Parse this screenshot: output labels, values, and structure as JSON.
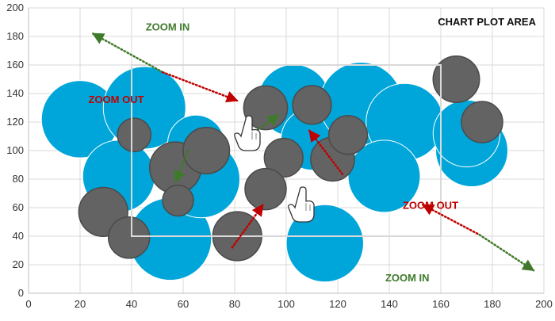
{
  "chart_data": {
    "type": "bubble",
    "title": "CHART PLOT AREA",
    "xlabel": "",
    "ylabel": "",
    "xlim": [
      0,
      200
    ],
    "ylim": [
      0,
      200
    ],
    "grid": true,
    "x_ticks": [
      0,
      20,
      40,
      60,
      80,
      100,
      120,
      140,
      160,
      180,
      200
    ],
    "y_ticks": [
      0,
      20,
      40,
      60,
      80,
      100,
      120,
      140,
      160,
      180,
      200
    ],
    "zoom_region": {
      "x": [
        40,
        160
      ],
      "y": [
        40,
        160
      ]
    },
    "series": [
      {
        "color": "#00a6d9",
        "points": [
          {
            "x": 20,
            "y": 122,
            "r": 15
          },
          {
            "x": 45,
            "y": 130,
            "r": 16
          },
          {
            "x": 35,
            "y": 82,
            "r": 14
          },
          {
            "x": 55,
            "y": 38,
            "r": 16
          },
          {
            "x": 67,
            "y": 80,
            "r": 15
          },
          {
            "x": 65,
            "y": 105,
            "r": 11
          },
          {
            "x": 103,
            "y": 135,
            "r": 14
          },
          {
            "x": 110,
            "y": 108,
            "r": 12
          },
          {
            "x": 129,
            "y": 133,
            "r": 16
          },
          {
            "x": 146,
            "y": 120,
            "r": 15
          },
          {
            "x": 138,
            "y": 82,
            "r": 14
          },
          {
            "x": 115,
            "y": 35,
            "r": 15
          },
          {
            "x": 172,
            "y": 100,
            "r": 14
          },
          {
            "x": 170,
            "y": 112,
            "r": 13
          }
        ]
      },
      {
        "color": "#636363",
        "points": [
          {
            "x": 41,
            "y": 111,
            "r": 6.5
          },
          {
            "x": 29,
            "y": 57,
            "r": 9.5
          },
          {
            "x": 39,
            "y": 39,
            "r": 8
          },
          {
            "x": 57,
            "y": 88,
            "r": 10
          },
          {
            "x": 69,
            "y": 100,
            "r": 9
          },
          {
            "x": 58,
            "y": 65,
            "r": 6
          },
          {
            "x": 81,
            "y": 40,
            "r": 9.5
          },
          {
            "x": 92,
            "y": 130,
            "r": 8.5
          },
          {
            "x": 99,
            "y": 95,
            "r": 7.5
          },
          {
            "x": 92,
            "y": 73,
            "r": 8
          },
          {
            "x": 110,
            "y": 132,
            "r": 7.5
          },
          {
            "x": 118,
            "y": 94,
            "r": 8.5
          },
          {
            "x": 124,
            "y": 111,
            "r": 7.5
          },
          {
            "x": 166,
            "y": 150,
            "r": 9
          },
          {
            "x": 176,
            "y": 120,
            "r": 8
          }
        ]
      }
    ],
    "annotations": [
      {
        "label": "ZOOM IN",
        "x": 54,
        "y": 187,
        "color": "#3f7a2a"
      },
      {
        "label": "ZOOM OUT",
        "x": 34,
        "y": 136,
        "color": "#c00000"
      },
      {
        "label": "ZOOM OUT",
        "x": 156,
        "y": 62,
        "color": "#c00000"
      },
      {
        "label": "ZOOM IN",
        "x": 147,
        "y": 11,
        "color": "#3f7a2a"
      }
    ],
    "arrows": [
      {
        "from": [
          25,
          182
        ],
        "to": [
          52,
          155
        ],
        "color": "#3f7a2a",
        "head": "from"
      },
      {
        "from": [
          52,
          155
        ],
        "to": [
          81,
          135
        ],
        "color": "#c00000",
        "head": "to"
      },
      {
        "from": [
          153,
          62
        ],
        "to": [
          175,
          41
        ],
        "color": "#c00000",
        "head": "from"
      },
      {
        "from": [
          175,
          41
        ],
        "to": [
          196,
          16
        ],
        "color": "#3f7a2a",
        "head": "to"
      },
      {
        "from": [
          97,
          125
        ],
        "to": [
          87,
          112
        ],
        "color": "#3f7a2a",
        "head": "from"
      },
      {
        "from": [
          62,
          100
        ],
        "to": [
          57,
          78
        ],
        "color": "#3f7a2a",
        "head": "to"
      },
      {
        "from": [
          79,
          32
        ],
        "to": [
          91,
          62
        ],
        "color": "#c00000",
        "head": "to"
      },
      {
        "from": [
          109,
          114
        ],
        "to": [
          122,
          83
        ],
        "color": "#c00000",
        "head": "from"
      }
    ]
  }
}
